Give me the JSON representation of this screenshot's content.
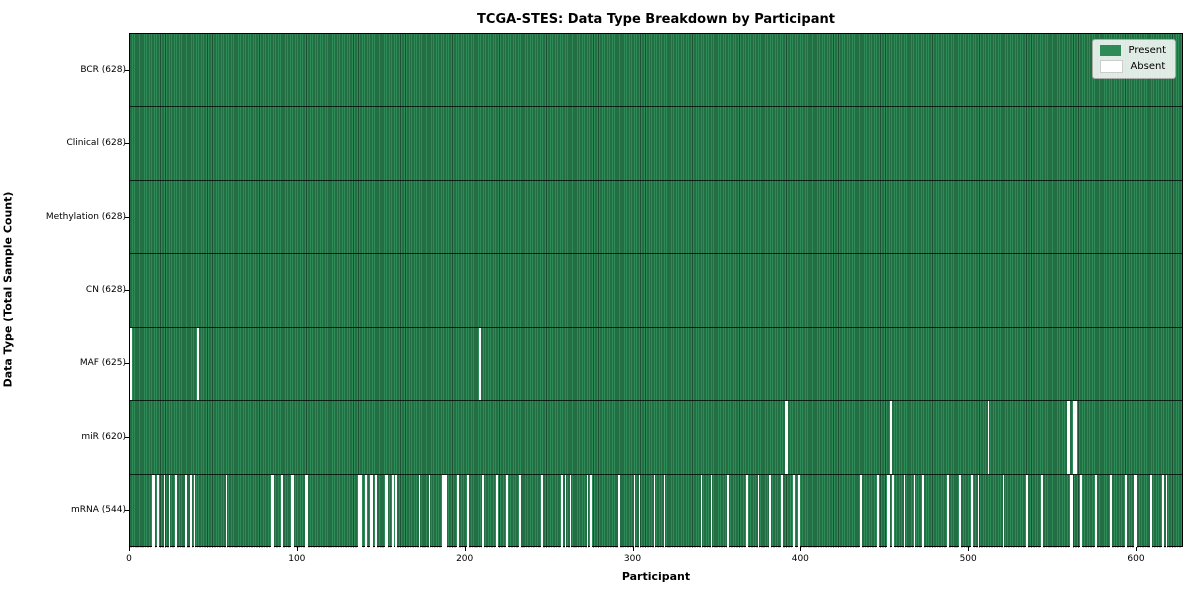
{
  "title": "TCGA-STES: Data Type Breakdown by Participant",
  "xlabel": "Participant",
  "ylabel": "Data Type (Total Sample Count)",
  "legend": {
    "items": [
      {
        "label": "Present",
        "color": "#2e8b57"
      },
      {
        "label": "Absent",
        "color": "#ffffff"
      }
    ]
  },
  "colors": {
    "present": "#2e8b57",
    "absent": "#ffffff",
    "cell_edge": "rgba(0,0,0,0.42)",
    "row_divider": "rgba(0,0,0,0.75)",
    "plot_border": "#000000"
  },
  "chart_data": {
    "type": "heatmap",
    "title": "TCGA-STES: Data Type Breakdown by Participant",
    "xlabel": "Participant",
    "ylabel": "Data Type (Total Sample Count)",
    "legend_entries": [
      "Present",
      "Absent"
    ],
    "legend_position": "upper right",
    "grid": false,
    "n_participants": 628,
    "x_range": [
      0,
      628
    ],
    "x_ticks": [
      0,
      100,
      200,
      300,
      400,
      500,
      600
    ],
    "value_encoding": {
      "present": 1,
      "absent": 0
    },
    "rows": [
      {
        "label": "BCR (628)",
        "name": "BCR",
        "present_count": 628,
        "absent_count": 0,
        "absent_indices": []
      },
      {
        "label": "Clinical (628)",
        "name": "Clinical",
        "present_count": 628,
        "absent_count": 0,
        "absent_indices": []
      },
      {
        "label": "Methylation (628)",
        "name": "Methylation",
        "present_count": 628,
        "absent_count": 0,
        "absent_indices": []
      },
      {
        "label": "CN (628)",
        "name": "CN",
        "present_count": 628,
        "absent_count": 0,
        "absent_indices": []
      },
      {
        "label": "MAF (625)",
        "name": "MAF",
        "present_count": 625,
        "absent_count": 3,
        "absent_indices": [
          0,
          40,
          208
        ]
      },
      {
        "label": "miR (620)",
        "name": "miR",
        "present_count": 620,
        "absent_count": 8,
        "absent_indices": [
          390,
          391,
          453,
          511,
          558,
          559,
          562,
          563
        ]
      },
      {
        "label": "mRNA (544)",
        "name": "mRNA",
        "present_count": 544,
        "absent_count": 84,
        "absent_indices": [
          13,
          14,
          16,
          20,
          23,
          27,
          33,
          36,
          38,
          57,
          84,
          85,
          90,
          96,
          97,
          104,
          105,
          136,
          137,
          140,
          143,
          144,
          146,
          152,
          153,
          156,
          158,
          172,
          178,
          186,
          187,
          188,
          195,
          201,
          210,
          218,
          224,
          232,
          245,
          257,
          259,
          262,
          272,
          274,
          291,
          300,
          303,
          312,
          318,
          340,
          346,
          356,
          367,
          374,
          381,
          388,
          395,
          398,
          435,
          445,
          451,
          452,
          454,
          461,
          467,
          472,
          487,
          494,
          501,
          505,
          520,
          534,
          543,
          560,
          561,
          566,
          575,
          584,
          593,
          598,
          599,
          608,
          615,
          617
        ]
      }
    ]
  }
}
